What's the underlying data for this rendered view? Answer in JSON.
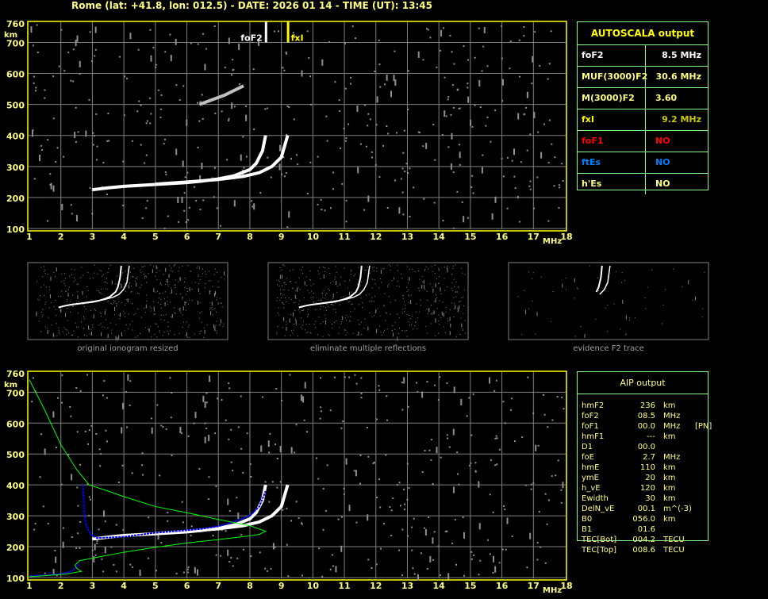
{
  "header": {
    "title": "Rome (lat: +41.8, lon: 012.5) - DATE: 2026 01 14 - TIME (UT): 13:45"
  },
  "colors": {
    "axis": "#ffff00",
    "grid": "#808080",
    "o_trace": "#ffffff",
    "aip_trace": "#0000ff",
    "profile": "#00ff00",
    "panel_border": "#80ff80"
  },
  "markers": {
    "foF2_label": "foF2",
    "fxI_label": "fxI"
  },
  "autoscala": {
    "title": "AUTOSCALA output",
    "rows": [
      {
        "key": "foF2",
        "value": "8.5 MHz",
        "color": "#ffffff"
      },
      {
        "key": "MUF(3000)F2",
        "value": "30.6 MHz",
        "color": "#ffff80"
      },
      {
        "key": "M(3000)F2",
        "value": "3.60",
        "color": "#ffff80"
      },
      {
        "key": "fxI",
        "value": "9.2 MHz",
        "color": "#ffff00",
        "value_color": "#c8c800"
      },
      {
        "key": "foF1",
        "value": "NO",
        "color": "#ff0000"
      },
      {
        "key": "ftEs",
        "value": "NO",
        "color": "#0080ff"
      },
      {
        "key": "h'Es",
        "value": "NO",
        "color": "#ffff80"
      }
    ]
  },
  "thumbnails": [
    {
      "label": "original ionogram resized"
    },
    {
      "label": "eliminate multiple reflections"
    },
    {
      "label": "evidence F2 trace"
    }
  ],
  "aip": {
    "title": "AIP output",
    "rows": [
      [
        "hmF2",
        "236",
        "km",
        ""
      ],
      [
        "foF2",
        "08.5",
        "MHz",
        ""
      ],
      [
        "foF1",
        "00.0",
        "MHz",
        "[PN]"
      ],
      [
        "hmF1",
        "---",
        "km",
        ""
      ],
      [
        "D1",
        "00.0",
        "",
        ""
      ],
      [
        "foE",
        "2.7",
        "MHz",
        ""
      ],
      [
        "hmE",
        "110",
        "km",
        ""
      ],
      [
        "ymE",
        "20",
        "km",
        ""
      ],
      [
        "h_vE",
        "120",
        "km",
        ""
      ],
      [
        "Ewidth",
        "30",
        "km",
        ""
      ],
      [
        "DelN_vE",
        "00.1",
        "m^(-3)",
        ""
      ],
      [
        "B0",
        "056.0",
        "km",
        ""
      ],
      [
        "B1",
        "01.6",
        "",
        ""
      ],
      [
        "TEC[Bot]",
        "004.2",
        "TECU",
        ""
      ],
      [
        "TEC[Top]",
        "008.6",
        "TECU",
        ""
      ]
    ]
  },
  "chart_data": [
    {
      "type": "scatter",
      "title": "",
      "xlabel": "MHz",
      "ylabel": "km",
      "xlim": [
        1,
        18
      ],
      "ylim": [
        100,
        760
      ],
      "xticks": [
        "1",
        "2",
        "3",
        "4",
        "5",
        "6",
        "7",
        "8",
        "9",
        "10",
        "11",
        "12",
        "13",
        "14",
        "15",
        "16",
        "17",
        "18"
      ],
      "yticks": [
        "100",
        "200",
        "300",
        "400",
        "500",
        "600",
        "700",
        "760"
      ],
      "grid": true,
      "series": [
        {
          "color": "#ffffff",
          "points": [
            [
              3.0,
              225
            ],
            [
              3.5,
              231
            ],
            [
              4,
              236
            ],
            [
              5,
              242
            ],
            [
              6,
              248
            ],
            [
              6.5,
              253
            ],
            [
              7,
              260
            ],
            [
              7.5,
              270
            ],
            [
              8,
              290
            ],
            [
              8.2,
              310
            ],
            [
              8.4,
              350
            ],
            [
              8.5,
              400
            ]
          ]
        },
        {
          "color": "#ffffff",
          "points": [
            [
              5,
              243
            ],
            [
              6,
              250
            ],
            [
              7,
              258
            ],
            [
              7.8,
              268
            ],
            [
              8.3,
              280
            ],
            [
              8.7,
              300
            ],
            [
              9.0,
              330
            ],
            [
              9.2,
              400
            ]
          ]
        },
        {
          "color": "#c0c0c0",
          "points": [
            [
              6.4,
              500
            ],
            [
              6.8,
              515
            ],
            [
              7.2,
              530
            ],
            [
              7.6,
              550
            ],
            [
              7.8,
              560
            ]
          ]
        }
      ],
      "markers": [
        {
          "label": "foF2",
          "x": 8.5
        },
        {
          "label": "fxI",
          "x": 9.2
        }
      ]
    },
    {
      "type": "line",
      "xlabel": "MHz",
      "ylabel": "km",
      "xlim": [
        1,
        18
      ],
      "ylim": [
        100,
        760
      ],
      "grid": true,
      "series": [
        {
          "color": "#ffffff",
          "points": [
            [
              3.0,
              225
            ],
            [
              3.5,
              231
            ],
            [
              4,
              236
            ],
            [
              5,
              242
            ],
            [
              6,
              248
            ],
            [
              6.5,
              253
            ],
            [
              7,
              260
            ],
            [
              7.5,
              270
            ],
            [
              8,
              290
            ],
            [
              8.2,
              310
            ],
            [
              8.4,
              350
            ],
            [
              8.5,
              400
            ]
          ]
        },
        {
          "color": "#ffffff",
          "points": [
            [
              5,
              243
            ],
            [
              6,
              250
            ],
            [
              7,
              258
            ],
            [
              7.8,
              268
            ],
            [
              8.3,
              280
            ],
            [
              8.7,
              300
            ],
            [
              9.0,
              330
            ],
            [
              9.2,
              400
            ]
          ]
        },
        {
          "color": "#0000ff",
          "points": [
            [
              2.7,
              400
            ],
            [
              2.75,
              300
            ],
            [
              2.8,
              270
            ],
            [
              2.95,
              240
            ],
            [
              3.15,
              228
            ],
            [
              4,
              232
            ],
            [
              5,
              245
            ],
            [
              6,
              253
            ],
            [
              6.5,
              258
            ],
            [
              7,
              266
            ],
            [
              7.5,
              280
            ],
            [
              8,
              300
            ],
            [
              8.3,
              330
            ],
            [
              8.5,
              380
            ]
          ]
        },
        {
          "color": "#0000ff",
          "points": [
            [
              1,
              105
            ],
            [
              1.6,
              108
            ],
            [
              2,
              112
            ],
            [
              2.3,
              118
            ],
            [
              2.5,
              135
            ],
            [
              2.6,
              145
            ]
          ]
        },
        {
          "color": "#00ff00",
          "points": [
            [
              1,
              740
            ],
            [
              1.5,
              640
            ],
            [
              2,
              530
            ],
            [
              2.5,
              450
            ],
            [
              2.9,
              400
            ],
            [
              3.5,
              380
            ],
            [
              4,
              362
            ],
            [
              5,
              330
            ],
            [
              6,
              310
            ],
            [
              7,
              288
            ],
            [
              7.5,
              278
            ],
            [
              8,
              268
            ],
            [
              8.5,
              250
            ],
            [
              8.3,
              240
            ],
            [
              8,
              235
            ],
            [
              7,
              223
            ],
            [
              6,
              212
            ],
            [
              5,
              198
            ],
            [
              4,
              182
            ],
            [
              3,
              163
            ],
            [
              2.6,
              155
            ],
            [
              2.45,
              140
            ],
            [
              2.5,
              130
            ],
            [
              2.65,
              120
            ],
            [
              2.2,
              112
            ],
            [
              1.5,
              106
            ],
            [
              1,
              103
            ]
          ]
        }
      ]
    }
  ]
}
